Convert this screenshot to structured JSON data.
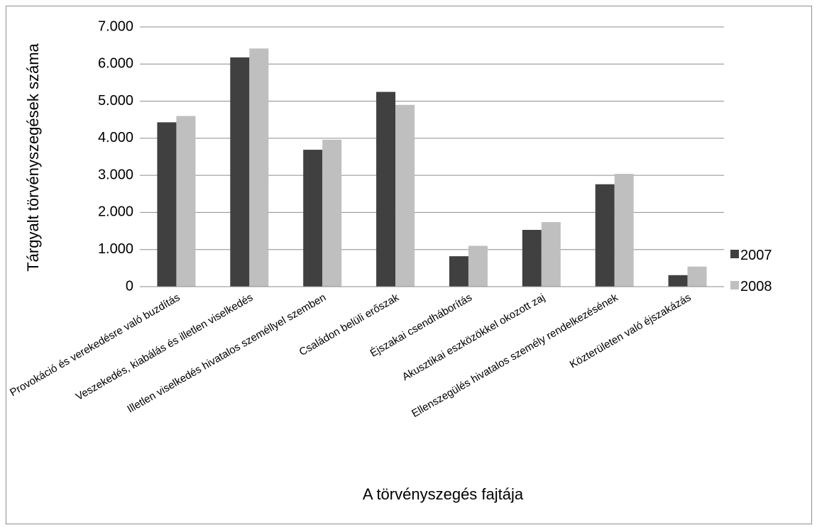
{
  "chart_data": {
    "type": "bar",
    "title": "",
    "xlabel": "A törvényszegés fajtája",
    "ylabel": "Tárgyalt törvényszegések száma",
    "ylim": [
      0,
      7000
    ],
    "yticks": [
      "0",
      "1.000",
      "2.000",
      "3.000",
      "4.000",
      "5.000",
      "6.000",
      "7.000"
    ],
    "grid": true,
    "legend_position": "right",
    "categories": [
      "Provokáció és verekedésre való buzdítás",
      "Veszekedés, kiabálás és illetlen viselkedés",
      "Illetlen viselkedés hivatalos személlyel szemben",
      "Családon belüli erőszak",
      "Éjszakai csendháborítás",
      "Akusztikai eszközökkel okozott zaj",
      "Ellenszegülés hivatalos személy rendelkezésének",
      "Közterületen való éjszakázás"
    ],
    "series": [
      {
        "name": "2007",
        "color": "#404040",
        "values": [
          4430,
          6180,
          3690,
          5250,
          820,
          1530,
          2760,
          310
        ]
      },
      {
        "name": "2008",
        "color": "#bfbfbf",
        "values": [
          4600,
          6420,
          3960,
          4900,
          1100,
          1740,
          3040,
          540
        ]
      }
    ]
  }
}
